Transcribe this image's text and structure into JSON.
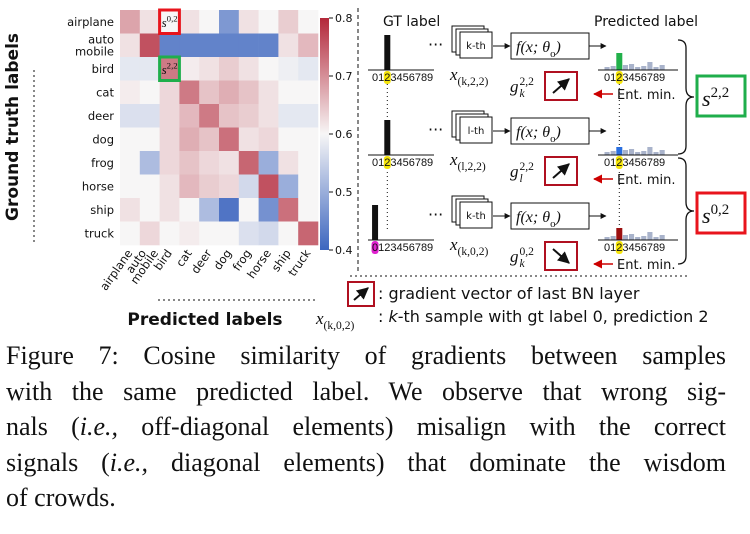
{
  "chart_data": {
    "type": "heatmap",
    "categories": [
      [
        "airplane"
      ],
      [
        "auto",
        "mobile"
      ],
      [
        "bird"
      ],
      [
        "cat"
      ],
      [
        "deer"
      ],
      [
        "dog"
      ],
      [
        "frog"
      ],
      [
        "horse"
      ],
      [
        "ship"
      ],
      [
        "truck"
      ]
    ],
    "y_label": "Ground truth labels",
    "x_label": "Predicted labels",
    "values": [
      [
        0.68,
        0.62,
        0.6,
        0.62,
        0.6,
        0.47,
        0.62,
        0.6,
        0.64,
        0.6
      ],
      [
        0.62,
        0.76,
        0.44,
        0.44,
        0.44,
        0.44,
        0.44,
        0.44,
        0.62,
        0.66
      ],
      [
        0.58,
        0.58,
        0.72,
        0.61,
        0.62,
        0.64,
        0.62,
        0.6,
        0.59,
        0.58
      ],
      [
        0.61,
        0.6,
        0.63,
        0.72,
        0.65,
        0.67,
        0.65,
        0.62,
        0.6,
        0.6
      ],
      [
        0.57,
        0.57,
        0.63,
        0.66,
        0.72,
        0.65,
        0.64,
        0.62,
        0.58,
        0.58
      ],
      [
        0.6,
        0.6,
        0.63,
        0.67,
        0.65,
        0.73,
        0.62,
        0.63,
        0.6,
        0.6
      ],
      [
        0.6,
        0.52,
        0.63,
        0.65,
        0.63,
        0.62,
        0.74,
        0.5,
        0.62,
        0.6
      ],
      [
        0.6,
        0.6,
        0.62,
        0.66,
        0.64,
        0.63,
        0.56,
        0.76,
        0.5,
        0.6
      ],
      [
        0.62,
        0.6,
        0.62,
        0.6,
        0.52,
        0.42,
        0.6,
        0.46,
        0.73,
        0.6
      ],
      [
        0.6,
        0.63,
        0.6,
        0.61,
        0.6,
        0.6,
        0.57,
        0.56,
        0.6,
        0.74
      ]
    ],
    "zlim": [
      0.4,
      0.8
    ],
    "zticks": [
      0.4,
      0.5,
      0.6,
      0.7,
      0.8
    ],
    "colormap": [
      "#3d66bf",
      "#f7f6f6",
      "#b3283a"
    ],
    "annotations": [
      {
        "base": "s",
        "sup": "0,2",
        "x": "bird",
        "y": "airplane",
        "color": "#e8141c"
      },
      {
        "base": "s",
        "sup": "2,2",
        "x": "bird",
        "y": "bird",
        "color": "#1fae4b"
      }
    ]
  },
  "diagram": {
    "gt_title": "GT label",
    "pred_title": "Predicted label",
    "digits": "0123456789",
    "ellipsis": "···",
    "model": {
      "pre": "f(x; θ",
      "sub": "o",
      "post": ")"
    },
    "rows": [
      {
        "card": "k-th",
        "sample": {
          "base": "x",
          "sub": "(k,2,2)"
        },
        "gradient": {
          "base": "g",
          "sub": "k",
          "sup": "2,2"
        },
        "note": "Ent. min."
      },
      {
        "card": "l-th",
        "sample": {
          "base": "x",
          "sub": "(l,2,2)"
        },
        "gradient": {
          "base": "g",
          "sub": "l",
          "sup": "2,2"
        },
        "note": "Ent. min."
      },
      {
        "card": "k-th",
        "sample": {
          "base": "x",
          "sub": "(k,0,2)"
        },
        "gradient": {
          "base": "g",
          "sub": "k",
          "sup": "0,2"
        },
        "note": "Ent. min."
      }
    ],
    "scores": [
      {
        "base": "s",
        "sup": "2,2"
      },
      {
        "base": "s",
        "sup": "0,2"
      }
    ],
    "legend": {
      "gradient": ": gradient vector of last BN layer",
      "sample": {
        "base": "x",
        "sub": "(k,0,2)"
      },
      "sample_text": [
        {
          "text": ": "
        },
        {
          "text": "k",
          "style": "italic"
        },
        {
          "text": "-th sample with gt label 0, prediction 2"
        }
      ]
    }
  },
  "caption": {
    "lines": [
      [
        {
          "text": "Figure 7:  Cosine similarity of gradients between samples"
        }
      ],
      [
        {
          "text": "with the same predicted label.  We observe that wrong sig-"
        }
      ],
      [
        {
          "text": "nals ("
        },
        {
          "text": "i.e.,",
          "style": "italic"
        },
        {
          "text": " off-diagonal elements) misalign with the correct"
        }
      ],
      [
        {
          "text": "signals ("
        },
        {
          "text": "i.e.,",
          "style": "italic"
        },
        {
          "text": " diagonal elements) that dominate the wisdom"
        }
      ],
      [
        {
          "text": "of crowds."
        }
      ]
    ]
  }
}
